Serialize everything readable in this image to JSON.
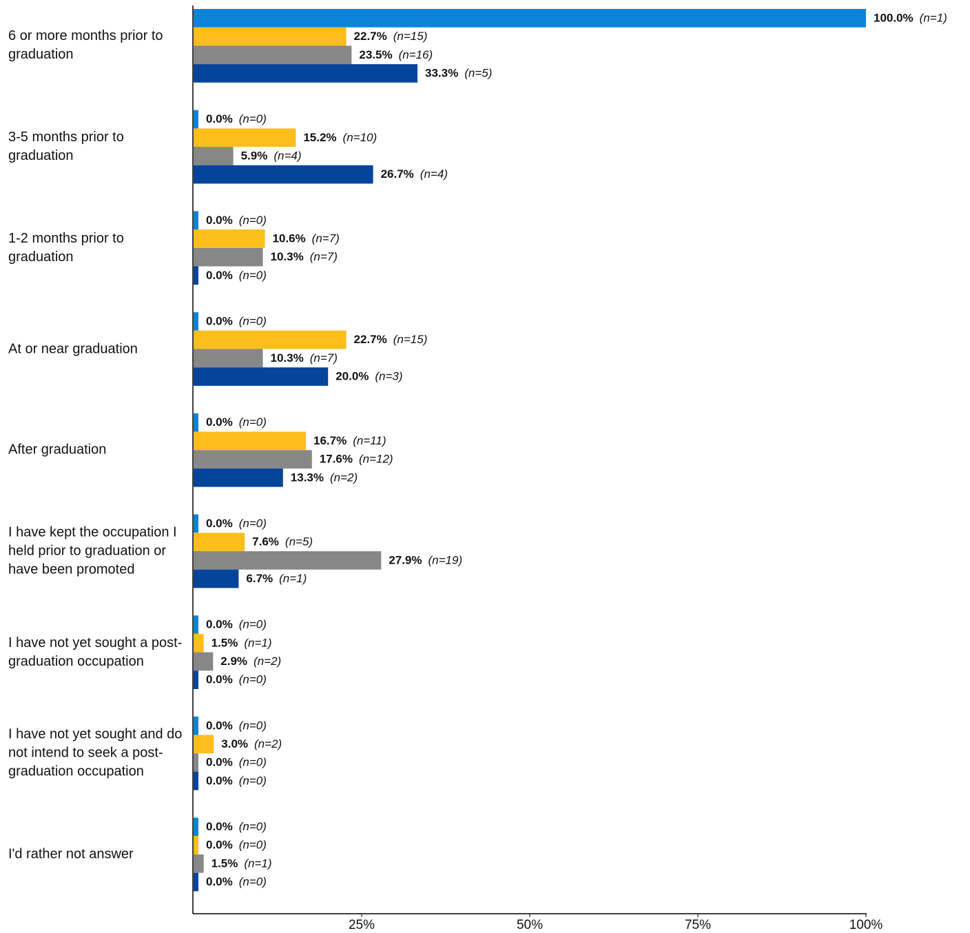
{
  "chart_data": {
    "type": "hbar",
    "categories": [
      "6 or more months prior to graduation",
      "3-5 months prior to graduation",
      "1-2 months prior to graduation",
      "At or near graduation",
      "After graduation",
      "I have kept the occupation I held prior to graduation or have been promoted",
      "I have not yet sought a post-graduation occupation",
      "I have not yet sought and do not intend to seek a post-graduation occupation",
      "I'd rather not answer"
    ],
    "series": [
      {
        "color": "#0a84d8",
        "values": [
          100,
          0,
          0,
          0,
          0,
          0,
          0,
          0,
          0
        ],
        "value_labels": [
          "100.0%",
          "0.0%",
          "0.0%",
          "0.0%",
          "0.0%",
          "0.0%",
          "0.0%",
          "0.0%",
          "0.0%"
        ],
        "count_labels": [
          "(n=1)",
          "(n=0)",
          "(n=0)",
          "(n=0)",
          "(n=0)",
          "(n=0)",
          "(n=0)",
          "(n=0)",
          "(n=0)"
        ]
      },
      {
        "color": "#fdbd1a",
        "values": [
          22.7,
          15.2,
          10.6,
          22.7,
          16.7,
          7.6,
          1.5,
          3.0,
          0.0
        ],
        "value_labels": [
          "22.7%",
          "15.2%",
          "10.6%",
          "22.7%",
          "16.7%",
          "7.6%",
          "1.5%",
          "3.0%",
          "0.0%"
        ],
        "count_labels": [
          "(n=15)",
          "(n=10)",
          "(n=7)",
          "(n=15)",
          "(n=11)",
          "(n=5)",
          "(n=1)",
          "(n=2)",
          "(n=0)"
        ]
      },
      {
        "color": "#878787",
        "values": [
          23.5,
          5.9,
          10.3,
          10.3,
          17.6,
          27.9,
          2.9,
          0.0,
          1.5
        ],
        "value_labels": [
          "23.5%",
          "5.9%",
          "10.3%",
          "10.3%",
          "17.6%",
          "27.9%",
          "2.9%",
          "0.0%",
          "1.5%"
        ],
        "count_labels": [
          "(n=16)",
          "(n=4)",
          "(n=7)",
          "(n=7)",
          "(n=12)",
          "(n=19)",
          "(n=2)",
          "(n=0)",
          "(n=1)"
        ]
      },
      {
        "color": "#05449b",
        "values": [
          33.3,
          26.7,
          0,
          20.0,
          13.3,
          6.7,
          0,
          0,
          0
        ],
        "value_labels": [
          "33.3%",
          "26.7%",
          "0.0%",
          "20.0%",
          "13.3%",
          "6.7%",
          "0.0%",
          "0.0%",
          "0.0%"
        ],
        "count_labels": [
          "(n=5)",
          "(n=4)",
          "(n=0)",
          "(n=3)",
          "(n=2)",
          "(n=1)",
          "(n=0)",
          "(n=0)",
          "(n=0)"
        ]
      }
    ],
    "xlim": [
      0,
      100
    ],
    "xticks": [
      {
        "value": 25,
        "label": "25%"
      },
      {
        "value": 50,
        "label": "50%"
      },
      {
        "value": 75,
        "label": "75%"
      },
      {
        "value": 100,
        "label": "100%"
      }
    ]
  }
}
